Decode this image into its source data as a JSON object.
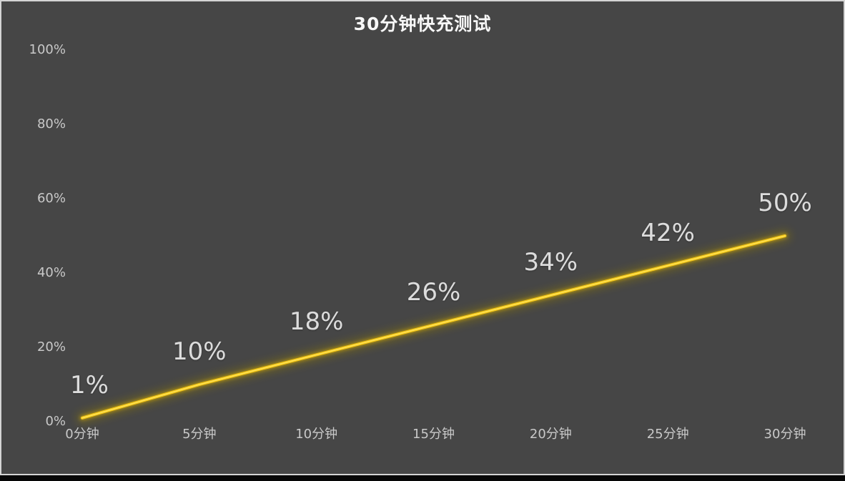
{
  "chart_data": {
    "type": "line",
    "title": "30分钟快充测试",
    "categories": [
      "0分钟",
      "5分钟",
      "10分钟",
      "15分钟",
      "20分钟",
      "25分钟",
      "30分钟"
    ],
    "values": [
      1,
      10,
      18,
      26,
      34,
      42,
      50
    ],
    "data_labels": [
      "1%",
      "10%",
      "18%",
      "26%",
      "34%",
      "42%",
      "50%"
    ],
    "y_axis": {
      "tick_labels": [
        "0%",
        "20%",
        "40%",
        "60%",
        "80%",
        "100%"
      ],
      "tick_values": [
        0,
        20,
        40,
        60,
        80,
        100
      ]
    },
    "xlabel": "",
    "ylabel": "",
    "ylim": [
      0,
      100
    ],
    "grid": false,
    "legend": "none",
    "colors": {
      "background": "#464646",
      "line_core": "#f2c513",
      "line_highlight": "#ffe45c",
      "glow_outer": "#8f7a08",
      "glow_inner": "#c7a30a",
      "title": "#f7f7f7",
      "axis_label": "#c9c9c9",
      "data_label": "#dcdcdc",
      "frame_border": "#d4d4d4",
      "bottom_bar": "#060606"
    }
  }
}
